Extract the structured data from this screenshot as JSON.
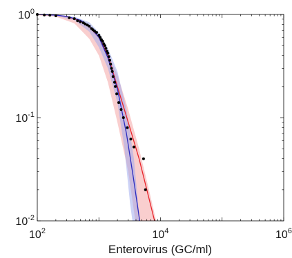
{
  "chart_data": {
    "type": "line",
    "title": "",
    "xlabel": "Enterovirus (GC/ml)",
    "ylabel": "",
    "xscale": "log",
    "yscale": "log",
    "xlim": [
      100,
      1000000
    ],
    "ylim": [
      0.01,
      1
    ],
    "grid": false,
    "legend": "none",
    "x_ticks": [
      {
        "base": "10",
        "exp": "2",
        "value": 100
      },
      {
        "base": "10",
        "exp": "4",
        "value": 10000
      },
      {
        "base": "10",
        "exp": "6",
        "value": 1000000
      }
    ],
    "y_ticks": [
      {
        "base": "10",
        "exp": "0",
        "value": 1
      },
      {
        "base": "10",
        "exp": "-1",
        "value": 0.1
      },
      {
        "base": "10",
        "exp": "-2",
        "value": 0.01
      }
    ],
    "series": [
      {
        "kind": "band",
        "color": "#f4a6a6",
        "opacity": 0.55,
        "upper": [
          [
            100,
            1.0
          ],
          [
            200,
            0.99
          ],
          [
            400,
            0.92
          ],
          [
            700,
            0.78
          ],
          [
            1000,
            0.6
          ],
          [
            1400,
            0.42
          ],
          [
            2000,
            0.26
          ],
          [
            3000,
            0.12
          ],
          [
            4500,
            0.05
          ],
          [
            6500,
            0.02
          ],
          [
            8500,
            0.01
          ]
        ],
        "lower": [
          [
            100,
            0.98
          ],
          [
            200,
            0.95
          ],
          [
            400,
            0.82
          ],
          [
            700,
            0.58
          ],
          [
            1000,
            0.4
          ],
          [
            1400,
            0.22
          ],
          [
            2000,
            0.09
          ],
          [
            3000,
            0.03
          ],
          [
            3900,
            0.01
          ]
        ]
      },
      {
        "kind": "band",
        "color": "#9aa6ee",
        "opacity": 0.5,
        "upper": [
          [
            100,
            1.0
          ],
          [
            200,
            0.99
          ],
          [
            400,
            0.95
          ],
          [
            700,
            0.84
          ],
          [
            1000,
            0.67
          ],
          [
            1400,
            0.47
          ],
          [
            2000,
            0.28
          ],
          [
            2800,
            0.12
          ],
          [
            3700,
            0.04
          ],
          [
            4600,
            0.01
          ]
        ],
        "lower": [
          [
            100,
            0.99
          ],
          [
            200,
            0.97
          ],
          [
            400,
            0.88
          ],
          [
            700,
            0.68
          ],
          [
            1000,
            0.48
          ],
          [
            1400,
            0.3
          ],
          [
            2000,
            0.14
          ],
          [
            2600,
            0.05
          ],
          [
            3200,
            0.015
          ],
          [
            3500,
            0.01
          ]
        ]
      },
      {
        "kind": "line",
        "color": "#e8242b",
        "points": [
          [
            100,
            1.0
          ],
          [
            200,
            0.985
          ],
          [
            300,
            0.955
          ],
          [
            500,
            0.87
          ],
          [
            700,
            0.76
          ],
          [
            1000,
            0.6
          ],
          [
            1400,
            0.4
          ],
          [
            2000,
            0.2
          ],
          [
            3000,
            0.09
          ],
          [
            4500,
            0.04
          ],
          [
            6000,
            0.02
          ],
          [
            8000,
            0.01
          ]
        ]
      },
      {
        "kind": "line",
        "color": "#2b2bbf",
        "points": [
          [
            100,
            1.0
          ],
          [
            200,
            0.985
          ],
          [
            300,
            0.958
          ],
          [
            500,
            0.88
          ],
          [
            700,
            0.77
          ],
          [
            1000,
            0.6
          ],
          [
            1400,
            0.38
          ],
          [
            2000,
            0.19
          ],
          [
            2800,
            0.07
          ],
          [
            3600,
            0.027
          ],
          [
            4600,
            0.01
          ]
        ]
      },
      {
        "kind": "scatter",
        "color": "#000000",
        "points": [
          [
            100,
            1.0
          ],
          [
            130,
            0.99
          ],
          [
            160,
            0.985
          ],
          [
            200,
            0.97
          ],
          [
            330,
            0.93
          ],
          [
            400,
            0.91
          ],
          [
            450,
            0.87
          ],
          [
            500,
            0.85
          ],
          [
            560,
            0.83
          ],
          [
            600,
            0.81
          ],
          [
            650,
            0.79
          ],
          [
            700,
            0.77
          ],
          [
            760,
            0.73
          ],
          [
            800,
            0.71
          ],
          [
            850,
            0.69
          ],
          [
            920,
            0.67
          ],
          [
            1000,
            0.63
          ],
          [
            1050,
            0.6
          ],
          [
            1100,
            0.57
          ],
          [
            1150,
            0.55
          ],
          [
            1200,
            0.52
          ],
          [
            1250,
            0.5
          ],
          [
            1300,
            0.47
          ],
          [
            1350,
            0.44
          ],
          [
            1400,
            0.42
          ],
          [
            1450,
            0.39
          ],
          [
            1500,
            0.36
          ],
          [
            1550,
            0.33
          ],
          [
            1600,
            0.3
          ],
          [
            1650,
            0.28
          ],
          [
            1700,
            0.25
          ],
          [
            1800,
            0.22
          ],
          [
            1850,
            0.2
          ],
          [
            1950,
            0.17
          ],
          [
            2100,
            0.14
          ],
          [
            2300,
            0.12
          ],
          [
            2500,
            0.1
          ],
          [
            2900,
            0.08
          ],
          [
            3300,
            0.062
          ],
          [
            3700,
            0.052
          ],
          [
            5300,
            0.04
          ],
          [
            5700,
            0.02
          ]
        ]
      }
    ]
  }
}
